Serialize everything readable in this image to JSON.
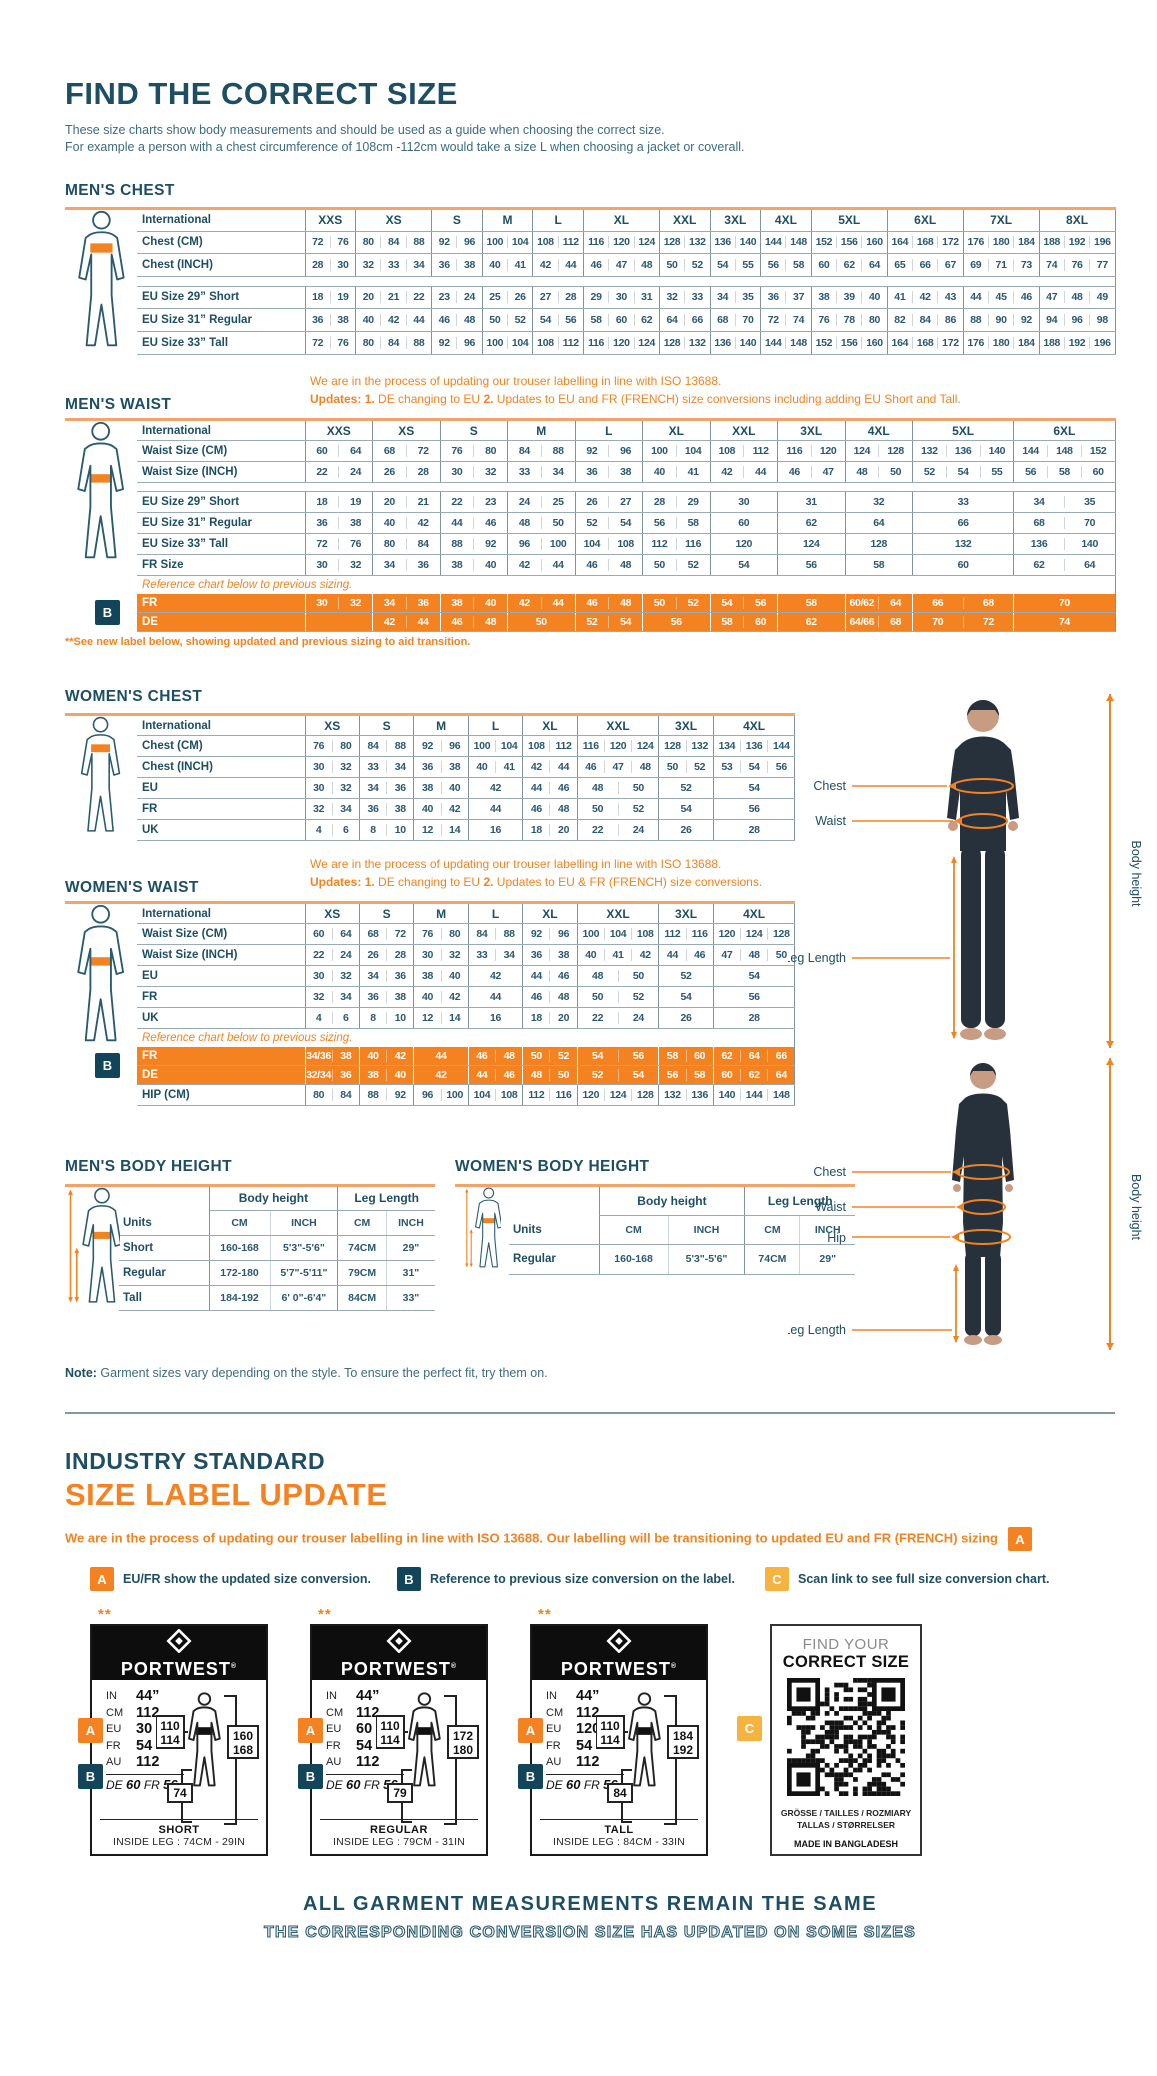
{
  "colors": {
    "teal": "#1d4e63",
    "orange": "#f58220",
    "amber": "#f6b33f",
    "navy": "#12455a",
    "line_gray": "#9aabb5",
    "peach": "#f3a469"
  },
  "page": {
    "title": "FIND THE CORRECT SIZE",
    "intro1": "These size charts show body measurements and should be used as a guide when choosing the correct size.",
    "intro2": "For example a person with a chest circumference of 108cm -112cm would take a size L when choosing a jacket or coverall."
  },
  "note": {
    "label": "Note:",
    "text": " Garment sizes vary depending on the style. To ensure the perfect fit, try them on."
  },
  "mens_chest": {
    "title": "MEN'S CHEST",
    "side_label": "International",
    "figure": "male-chest",
    "columns": [
      {
        "label": "XXS",
        "units": 2
      },
      {
        "label": "XS",
        "units": 3
      },
      {
        "label": "S",
        "units": 2
      },
      {
        "label": "M",
        "units": 2
      },
      {
        "label": "L",
        "units": 2
      },
      {
        "label": "XL",
        "units": 3
      },
      {
        "label": "XXL",
        "units": 2
      },
      {
        "label": "3XL",
        "units": 2
      },
      {
        "label": "4XL",
        "units": 2
      },
      {
        "label": "5XL",
        "units": 3
      },
      {
        "label": "6XL",
        "units": 3
      },
      {
        "label": "7XL",
        "units": 3
      },
      {
        "label": "8XL",
        "units": 3
      }
    ],
    "rows": [
      {
        "type": "data",
        "label": "Chest (CM)",
        "cells": [
          "72 76",
          "80 84 88",
          "92 96",
          "100 104",
          "108 112",
          "116 120 124",
          "128 132",
          "136 140",
          "144 148",
          "152 156 160",
          "164 168 172",
          "176 180 184",
          "188 192 196"
        ]
      },
      {
        "type": "data",
        "label": "Chest (INCH)",
        "cells": [
          "28 30",
          "32 33 34",
          "36 38",
          "40 41",
          "42 44",
          "46 47 48",
          "50 52",
          "54 55",
          "56 58",
          "60 62 64",
          "65 66 67",
          "69 71 73",
          "74 76 77"
        ]
      },
      {
        "type": "gap"
      },
      {
        "type": "data",
        "label": "EU Size 29” Short",
        "cells": [
          "18 19",
          "20 21 22",
          "23 24",
          "25 26",
          "27 28",
          "29 30 31",
          "32 33",
          "34 35",
          "36 37",
          "38 39 40",
          "41 42 43",
          "44 45 46",
          "47 48 49"
        ]
      },
      {
        "type": "data",
        "label": "EU Size 31” Regular",
        "cells": [
          "36 38",
          "40 42 44",
          "46 48",
          "50 52",
          "54 56",
          "58 60 62",
          "64 66",
          "68 70",
          "72 74",
          "76 78 80",
          "82 84 86",
          "88 90 92",
          "94 96 98"
        ]
      },
      {
        "type": "data",
        "label": "EU Size 33” Tall",
        "cells": [
          "72 76",
          "80 84 88",
          "92 96",
          "100 104",
          "108 112",
          "116 120 124",
          "128 132",
          "136 140",
          "144 148",
          "152 156 160",
          "164 168 172",
          "176 180 184",
          "188 192 196"
        ]
      }
    ]
  },
  "mens_waist": {
    "title": "MEN'S WAIST",
    "side_label": "International",
    "figure": "male-waist",
    "update_line1": "We are in the process of updating our trouser labelling in line with ISO 13688.",
    "update_line2": [
      [
        "b",
        "Updates:"
      ],
      [
        "t",
        "   "
      ],
      [
        "b",
        "1."
      ],
      [
        "t",
        " DE changing to EU    "
      ],
      [
        "b",
        "2."
      ],
      [
        "t",
        " Updates to EU and FR (FRENCH) size conversions including adding EU Short and Tall."
      ]
    ],
    "columns": [
      {
        "label": "XXS",
        "units": 2
      },
      {
        "label": "XS",
        "units": 2
      },
      {
        "label": "S",
        "units": 2
      },
      {
        "label": "M",
        "units": 2
      },
      {
        "label": "L",
        "units": 2
      },
      {
        "label": "XL",
        "units": 2
      },
      {
        "label": "XXL",
        "units": 2
      },
      {
        "label": "3XL",
        "units": 2
      },
      {
        "label": "4XL",
        "units": 2
      },
      {
        "label": "5XL",
        "units": 3
      },
      {
        "label": "6XL",
        "units": 3
      }
    ],
    "rows": [
      {
        "type": "data",
        "label": "Waist Size (CM)",
        "cells": [
          "60 64",
          "68 72",
          "76 80",
          "84 88",
          "92 96",
          "100 104",
          "108 112",
          "116 120",
          "124 128",
          "132 136 140",
          "144 148 152"
        ]
      },
      {
        "type": "data",
        "label": "Waist Size (INCH)",
        "cells": [
          "22 24",
          "26 28",
          "30 32",
          "33 34",
          "36 38",
          "40 41",
          "42 44",
          "46 47",
          "48 50",
          "52 54 55",
          "56 58 60"
        ]
      },
      {
        "type": "gap"
      },
      {
        "type": "data",
        "label": "EU Size 29” Short",
        "cells": [
          "18 19",
          "20 21",
          "22 23",
          "24 25",
          "26 27",
          "28 29",
          "30",
          "31",
          "32",
          "33",
          "34 35"
        ]
      },
      {
        "type": "data",
        "label": "EU Size 31” Regular",
        "cells": [
          "36 38",
          "40 42",
          "44 46",
          "48 50",
          "52 54",
          "56 58",
          "60",
          "62",
          "64",
          "66",
          "68 70"
        ]
      },
      {
        "type": "data",
        "label": "EU Size 33” Tall",
        "cells": [
          "72 76",
          "80 84",
          "88 92",
          "96 100",
          "104 108",
          "112 116",
          "120",
          "124",
          "128",
          "132",
          "136 140"
        ]
      },
      {
        "type": "data",
        "label": "FR Size",
        "cells": [
          "30 32",
          "34 36",
          "38 40",
          "42 44",
          "46 48",
          "50 52",
          "54",
          "56",
          "58",
          "60",
          "62 64"
        ]
      },
      {
        "type": "note",
        "text": "Reference chart below to previous sizing."
      },
      {
        "type": "orange",
        "label": "FR",
        "cells": [
          "30 32",
          "34 36",
          "38 40",
          "42 44",
          "46 48",
          "50 52",
          "54 56",
          "58",
          "60/62 64",
          "66 68",
          "70"
        ]
      },
      {
        "type": "orange",
        "label": "DE",
        "cells": [
          "",
          "42 44",
          "46 48",
          "50",
          "52 54",
          "56",
          "58 60",
          "62",
          "64/66 68",
          "70 72",
          "74"
        ]
      }
    ],
    "badge": "B",
    "footnote": "**See new label below, showing updated and previous sizing to aid transition."
  },
  "womens_chest": {
    "title": "WOMEN'S CHEST",
    "side_label": "International",
    "figure": "female-chest",
    "columns": [
      {
        "label": "XS",
        "units": 2
      },
      {
        "label": "S",
        "units": 2
      },
      {
        "label": "M",
        "units": 2
      },
      {
        "label": "L",
        "units": 2
      },
      {
        "label": "XL",
        "units": 2
      },
      {
        "label": "XXL",
        "units": 3
      },
      {
        "label": "3XL",
        "units": 2
      },
      {
        "label": "4XL",
        "units": 3
      }
    ],
    "rows": [
      {
        "type": "data",
        "label": "Chest (CM)",
        "cells": [
          "76 80",
          "84 88",
          "92 96",
          "100 104",
          "108 112",
          "116 120 124",
          "128 132",
          "134 136 144"
        ]
      },
      {
        "type": "data",
        "label": "Chest (INCH)",
        "cells": [
          "30 32",
          "33 34",
          "36 38",
          "40 41",
          "42 44",
          "46 47 48",
          "50 52",
          "53 54 56"
        ]
      },
      {
        "type": "data",
        "label": "EU",
        "cells": [
          "30 32",
          "34 36",
          "38 40",
          "42",
          "44 46",
          "48 50",
          "52",
          "54"
        ]
      },
      {
        "type": "data",
        "label": "FR",
        "cells": [
          "32 34",
          "36 38",
          "40 42",
          "44",
          "46 48",
          "50 52",
          "54",
          "56"
        ]
      },
      {
        "type": "data",
        "label": "UK",
        "cells": [
          "4 6",
          "8 10",
          "12 14",
          "16",
          "18 20",
          "22 24",
          "26",
          "28"
        ]
      }
    ]
  },
  "womens_waist": {
    "title": "WOMEN'S WAIST",
    "side_label": "International",
    "figure": "female-waist",
    "update_line1": "We are in the process of updating our trouser labelling in line with ISO 13688.",
    "update_line2": [
      [
        "b",
        "Updates:"
      ],
      [
        "t",
        "   "
      ],
      [
        "b",
        "1."
      ],
      [
        "t",
        " DE changing to EU    "
      ],
      [
        "b",
        "2."
      ],
      [
        "t",
        " Updates to EU & FR (FRENCH) size conversions."
      ]
    ],
    "columns": [
      {
        "label": "XS",
        "units": 2
      },
      {
        "label": "S",
        "units": 2
      },
      {
        "label": "M",
        "units": 2
      },
      {
        "label": "L",
        "units": 2
      },
      {
        "label": "XL",
        "units": 2
      },
      {
        "label": "XXL",
        "units": 3
      },
      {
        "label": "3XL",
        "units": 2
      },
      {
        "label": "4XL",
        "units": 3
      }
    ],
    "rows": [
      {
        "type": "data",
        "label": "Waist Size (CM)",
        "cells": [
          "60 64",
          "68 72",
          "76 80",
          "84 88",
          "92 96",
          "100 104 108",
          "112 116",
          "120 124 128"
        ]
      },
      {
        "type": "data",
        "label": "Waist Size (INCH)",
        "cells": [
          "22 24",
          "26 28",
          "30 32",
          "33 34",
          "36 38",
          "40 41 42",
          "44 46",
          "47 48 50"
        ]
      },
      {
        "type": "data",
        "label": "EU",
        "cells": [
          "30 32",
          "34 36",
          "38 40",
          "42",
          "44 46",
          "48 50",
          "52",
          "54"
        ]
      },
      {
        "type": "data",
        "label": "FR",
        "cells": [
          "32 34",
          "36 38",
          "40 42",
          "44",
          "46 48",
          "50 52",
          "54",
          "56"
        ]
      },
      {
        "type": "data",
        "label": "UK",
        "cells": [
          "4 6",
          "8 10",
          "12 14",
          "16",
          "18 20",
          "22 24",
          "26",
          "28"
        ]
      },
      {
        "type": "note",
        "text": "Reference chart below to previous sizing."
      },
      {
        "type": "orange",
        "label": "FR",
        "cells": [
          "34/36 38",
          "40 42",
          "44",
          "46 48",
          "50 52",
          "54 56",
          "58 60",
          "62 64 66"
        ]
      },
      {
        "type": "orange",
        "label": "DE",
        "cells": [
          "32/34 36",
          "38 40",
          "42",
          "44 46",
          "48 50",
          "52 54",
          "56 58",
          "60 62 64"
        ]
      },
      {
        "type": "data",
        "label": "HIP (CM)",
        "cells": [
          "80 84",
          "88 92",
          "96 100",
          "104 108",
          "112 116",
          "120 124 128",
          "132 136",
          "140 144 148"
        ]
      }
    ],
    "badge": "B"
  },
  "mens_height": {
    "title": "MEN'S BODY HEIGHT",
    "group_headers": [
      "Body height",
      "Leg Length"
    ],
    "units_label": "Units",
    "unit_cols": [
      "CM",
      "INCH",
      "CM",
      "INCH"
    ],
    "rows": [
      {
        "label": "Short",
        "values": [
          "160-168",
          "5'3\"-5'6\"",
          "74CM",
          "29\""
        ]
      },
      {
        "label": "Regular",
        "values": [
          "172-180",
          "5'7\"-5'11\"",
          "79CM",
          "31\""
        ]
      },
      {
        "label": "Tall",
        "values": [
          "184-192",
          "6' 0\"-6'4\"",
          "84CM",
          "33\""
        ]
      }
    ]
  },
  "womens_height": {
    "title": "WOMEN'S BODY HEIGHT",
    "group_headers": [
      "Body height",
      "Leg Length"
    ],
    "units_label": "Units",
    "unit_cols": [
      "CM",
      "INCH",
      "CM",
      "INCH"
    ],
    "rows": [
      {
        "label": "Regular",
        "values": [
          "160-168",
          "5'3\"-5'6\"",
          "74CM",
          "29\""
        ]
      }
    ]
  },
  "figures": {
    "male": {
      "chest": "Chest",
      "waist": "Waist",
      "leg": "Leg Length",
      "height": "Body height"
    },
    "female": {
      "chest": "Chest",
      "waist": "Waist",
      "hip": "Hip",
      "leg": "Leg Length",
      "height": "Body height"
    }
  },
  "industry": {
    "eyebrow": "INDUSTRY STANDARD",
    "title": "SIZE LABEL UPDATE",
    "para": "We are in the process of updating our trouser labelling in line with ISO 13688. Our labelling will be transitioning to updated EU and FR (FRENCH) sizing",
    "para_badge": "A"
  },
  "legend": [
    {
      "badge": "A",
      "style": "orange",
      "text": "EU/FR show the updated size conversion."
    },
    {
      "badge": "B",
      "style": "navy",
      "text": "Reference to previous size conversion on the label."
    },
    {
      "badge": "C",
      "style": "amber",
      "text": "Scan link to see full size conversion chart."
    }
  ],
  "brand": {
    "name": "PORTWEST",
    "reg": "®"
  },
  "stars": "**",
  "size_labels": [
    {
      "fit": "SHORT",
      "inside_leg": "INSIDE LEG : 74CM - 29IN",
      "specs": [
        [
          "IN",
          "44”"
        ],
        [
          "CM",
          "112"
        ],
        [
          "EU",
          "30"
        ],
        [
          "FR",
          "54"
        ],
        [
          "AU",
          "112"
        ]
      ],
      "previous": "DE 60 FR 56",
      "waist_box": [
        "110",
        "114"
      ],
      "height_box": [
        "160",
        "168"
      ],
      "leg_box": "74",
      "badges": [
        "A",
        "B"
      ]
    },
    {
      "fit": "REGULAR",
      "inside_leg": "INSIDE LEG : 79CM - 31IN",
      "specs": [
        [
          "IN",
          "44”"
        ],
        [
          "CM",
          "112"
        ],
        [
          "EU",
          "60"
        ],
        [
          "FR",
          "54"
        ],
        [
          "AU",
          "112"
        ]
      ],
      "previous": "DE 60 FR 56",
      "waist_box": [
        "110",
        "114"
      ],
      "height_box": [
        "172",
        "180"
      ],
      "leg_box": "79",
      "badges": [
        "A",
        "B"
      ]
    },
    {
      "fit": "TALL",
      "inside_leg": "INSIDE LEG : 84CM - 33IN",
      "specs": [
        [
          "IN",
          "44”"
        ],
        [
          "CM",
          "112"
        ],
        [
          "EU",
          "120"
        ],
        [
          "FR",
          "54"
        ],
        [
          "AU",
          "112"
        ]
      ],
      "previous": "DE 60 FR 56",
      "waist_box": [
        "110",
        "114"
      ],
      "height_box": [
        "184",
        "192"
      ],
      "leg_box": "84",
      "badges": [
        "A",
        "B"
      ]
    }
  ],
  "qr_card": {
    "top": "FIND YOUR",
    "title": "CORRECT SIZE",
    "langs1": "GRÖSSE / TAILLES / ROZMIARY",
    "langs2": "TALLAS  / STØRRELSER",
    "origin": "MADE IN BANGLADESH",
    "badge": "C"
  },
  "footer": {
    "line1": "ALL GARMENT MEASUREMENTS REMAIN THE SAME",
    "line2": "THE CORRESPONDING CONVERSION SIZE HAS UPDATED ON SOME SIZES"
  }
}
